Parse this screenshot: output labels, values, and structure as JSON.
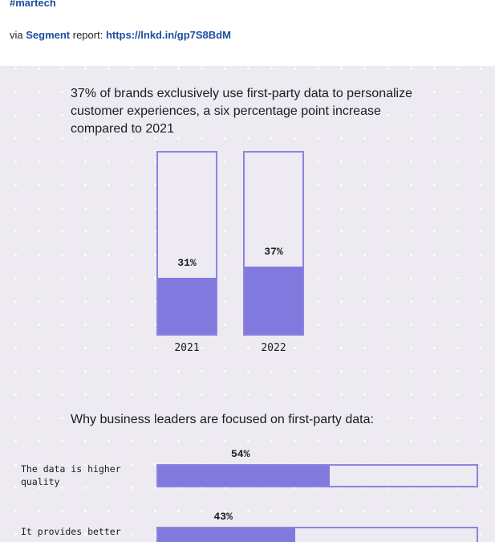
{
  "post": {
    "hashtag": "#martech",
    "via_prefix": "via ",
    "via_source": "Segment",
    "via_mid": " report: ",
    "via_link": "https://lnkd.in/gp7S8BdM"
  },
  "infographic": {
    "headline": "37% of brands exclusively use first-party data to personalize customer experiences, a six percentage point increase compared to 2021",
    "subheading": "Why business leaders are focused on first-party data:"
  },
  "colors": {
    "accent": "#8179de",
    "outline": "#8c84de",
    "background": "#edeaf1",
    "link": "#1a4f9c"
  },
  "chart_data": [
    {
      "type": "bar",
      "orientation": "vertical",
      "title": "37% of brands exclusively use first-party data to personalize customer experiences, a six percentage point increase compared to 2021",
      "categories": [
        "2021",
        "2022"
      ],
      "values": [
        31,
        37
      ],
      "value_labels": [
        "31%",
        "37%"
      ],
      "ylim": [
        0,
        100
      ]
    },
    {
      "type": "bar",
      "orientation": "horizontal",
      "title": "Why business leaders are focused on first-party data:",
      "categories": [
        "The data is higher quality",
        "It provides better"
      ],
      "values": [
        54,
        43
      ],
      "value_labels": [
        "54%",
        "43%"
      ],
      "xlim": [
        0,
        100
      ]
    }
  ]
}
